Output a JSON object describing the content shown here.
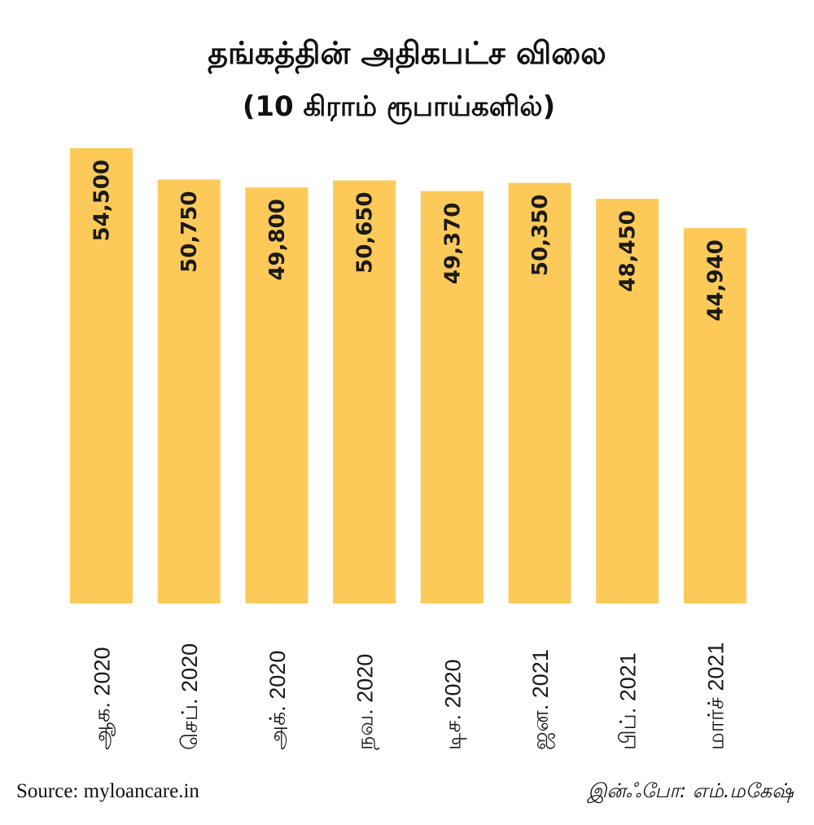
{
  "chart_data": {
    "type": "bar",
    "title": "தங்கத்தின் அதிகபட்ச விலை",
    "subtitle": "(10 கிராம்  ரூபாய்களில்)",
    "categories": [
      "ஆக. 2020",
      "செப். 2020",
      "அக். 2020",
      "நவ. 2020",
      "டிச. 2020",
      "ஜன. 2021",
      "பிப். 2021",
      "மார்ச் 2021"
    ],
    "values": [
      54500,
      50750,
      49800,
      50650,
      49370,
      50350,
      48450,
      44940
    ],
    "value_labels": [
      "54,500",
      "50,750",
      "49,800",
      "50,650",
      "49,370",
      "50,350",
      "48,450",
      "44,940"
    ],
    "ylim": [
      0,
      54500
    ],
    "grid": false,
    "bar_color": "#FDCA5A"
  },
  "footer": {
    "source": "Source: myloancare.in",
    "credit": "இன்ஃபோ: எம்.மகேஷ்"
  }
}
